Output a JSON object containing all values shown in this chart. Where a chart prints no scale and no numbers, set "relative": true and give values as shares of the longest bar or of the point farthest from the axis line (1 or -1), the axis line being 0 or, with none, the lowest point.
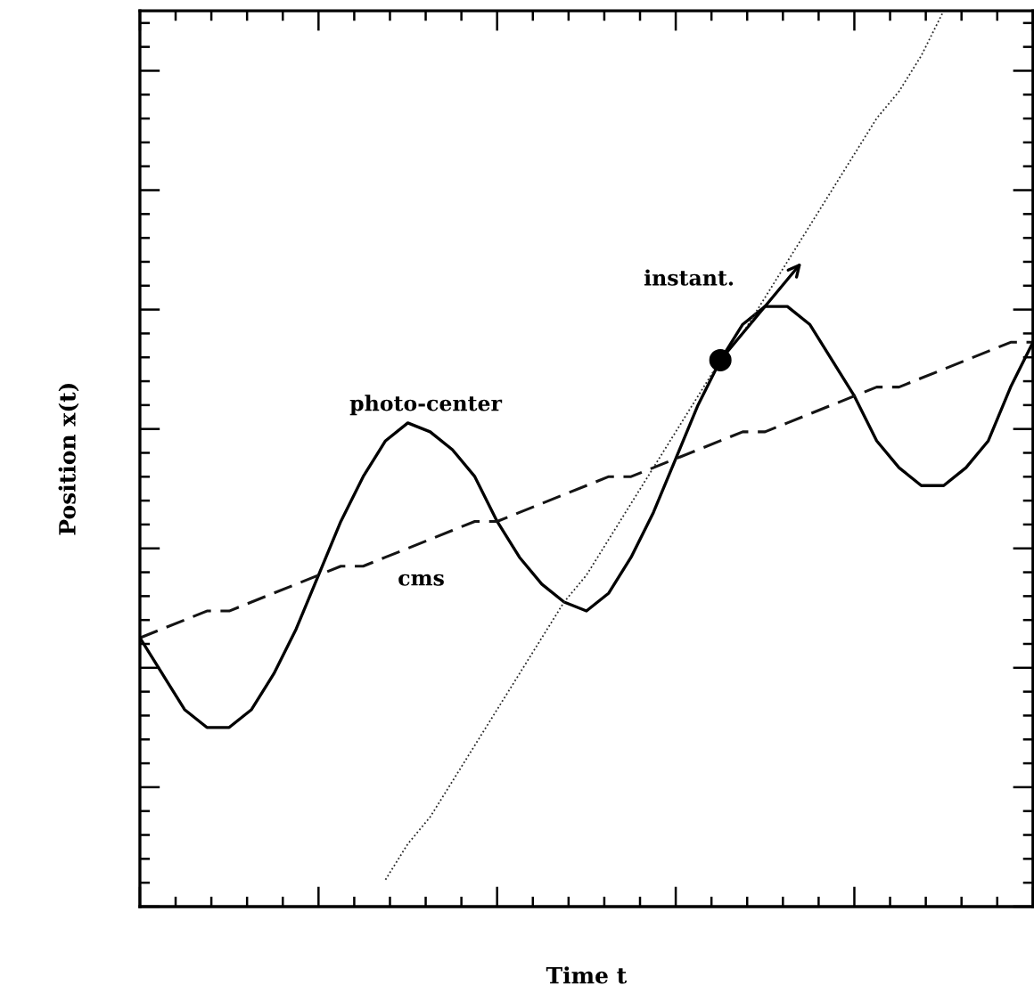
{
  "chart_data": {
    "type": "line",
    "relative": true,
    "xlabel": "Time t",
    "ylabel": "Position x(t)",
    "grid": false,
    "legend": false,
    "categories": [
      null,
      null,
      null,
      null,
      null,
      null,
      null,
      null,
      null,
      null,
      null,
      null,
      null,
      null,
      null,
      null,
      null,
      null,
      null,
      null,
      null,
      null,
      null,
      null,
      null,
      null,
      null,
      null,
      null,
      null,
      null,
      null,
      null,
      null,
      null,
      null,
      null,
      null,
      null,
      null,
      null
    ],
    "series": [
      {
        "name": "photo-center",
        "color": "#000000",
        "line_style": "solid",
        "values": [
          0.3,
          0.26,
          0.22,
          0.2,
          0.2,
          0.22,
          0.26,
          0.31,
          0.37,
          0.43,
          0.48,
          0.52,
          0.54,
          0.53,
          0.51,
          0.48,
          0.43,
          0.39,
          0.36,
          0.34,
          0.33,
          0.35,
          0.39,
          0.44,
          0.5,
          0.56,
          0.61,
          0.65,
          0.67,
          0.67,
          0.65,
          0.61,
          0.57,
          0.52,
          0.49,
          0.47,
          0.47,
          0.49,
          0.52,
          0.58,
          0.63
        ]
      },
      {
        "name": "cms",
        "color": "#141414",
        "line_style": "dashed",
        "values": [
          0.3,
          0.31,
          0.32,
          0.33,
          0.33,
          0.34,
          0.35,
          0.36,
          0.37,
          0.38,
          0.38,
          0.39,
          0.4,
          0.41,
          0.42,
          0.43,
          0.43,
          0.44,
          0.45,
          0.46,
          0.47,
          0.48,
          0.48,
          0.49,
          0.5,
          0.51,
          0.52,
          0.53,
          0.53,
          0.54,
          0.55,
          0.56,
          0.57,
          0.58,
          0.58,
          0.59,
          0.6,
          0.61,
          0.62,
          0.63,
          0.63
        ]
      },
      {
        "name": "instant.",
        "color": "#282828",
        "line_style": "dotted",
        "values": [
          null,
          null,
          null,
          null,
          null,
          null,
          null,
          null,
          null,
          null,
          null,
          0.03,
          0.07,
          0.1,
          0.14,
          0.18,
          0.22,
          0.26,
          0.3,
          0.34,
          0.37,
          0.41,
          0.45,
          0.49,
          0.53,
          0.57,
          0.61,
          0.64,
          0.68,
          0.72,
          0.76,
          0.8,
          0.84,
          0.88,
          0.91,
          0.95,
          1.0,
          null,
          null,
          null,
          null
        ]
      }
    ]
  }
}
